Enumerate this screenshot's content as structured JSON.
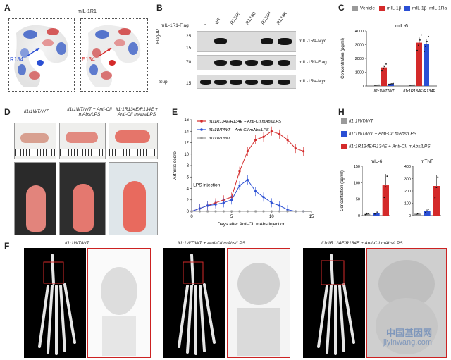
{
  "panel_labels": {
    "A": "A",
    "B": "B",
    "C": "C",
    "D": "D",
    "E": "E",
    "F": "F",
    "H": "H"
  },
  "panelA": {
    "title": "mIL-1R1",
    "left_residue": "R134",
    "right_residue": "E134"
  },
  "panelB": {
    "row_label": "mIL-1R1-Flag",
    "lanes": [
      "-",
      "WT",
      "R134E",
      "R134D",
      "R134H",
      "R134K"
    ],
    "side_labels": [
      "Flag-IP",
      "Sup."
    ],
    "mw_markers": [
      "25",
      "15",
      "70",
      "15"
    ],
    "blot_labels": [
      "mIL-1Ra-Myc",
      "mIL-1R1-Flag",
      "mIL-1Ra-Myc"
    ]
  },
  "panelC": {
    "legend": [
      {
        "label": "Vehicle",
        "color": "#9a9a9a"
      },
      {
        "label": "mIL-1β",
        "color": "#d42a2a"
      },
      {
        "label": "mIL-1β+mIL-1Ra",
        "color": "#2a4fd4"
      }
    ],
    "plot_title": "mIL-6",
    "ylabel": "Concentration (pg/ml)",
    "group_labels": [
      "Il1r1WT/WT",
      "Il1r1R134E/R134E"
    ]
  },
  "panelD": {
    "labels": [
      "Il1r1WT/WT",
      "Il1r1WT/WT + Anti-CII mAbs/LPS",
      "Il1r1R134E/R134E + Anti-CII mAbs/LPS"
    ]
  },
  "panelE": {
    "annotation": "LPS injection",
    "legend": [
      "Il1r1R134E/R134E + Anti-CII mAbs/LPS",
      "Il1r1WT/WT + Anti-CII mAbs/LPS",
      "Il1r1WT/WT"
    ]
  },
  "panelF": {
    "labels": [
      "Il1r1WT/WT",
      "Il1r1WT/WT + Anti-CII mAbs/LPS",
      "Il1r1R134E/R134E + Anti-CII mAbs/LPS"
    ]
  },
  "panelH": {
    "legend": [
      {
        "label": "Il1r1WT/WT",
        "color": "#9a9a9a"
      },
      {
        "label": "Il1r1WT/WT + Anti-CII mAbs/LPS",
        "color": "#2a4fd4"
      },
      {
        "label": "Il1r1R134E/R134E + Anti-CII mAbs/LPS",
        "color": "#d42a2a"
      }
    ],
    "plot_titles": [
      "mIL-6",
      "mTNF"
    ],
    "ylabel": "Concentration (pg/ml)"
  },
  "watermark": {
    "cn": "中国基因网",
    "url": "jiyinwang.com"
  },
  "chart_data": [
    {
      "type": "bar",
      "title": "mIL-6",
      "ylabel": "Concentration (pg/ml)",
      "categories": [
        "Il1r1WT/WT",
        "Il1r1R134E/R134E"
      ],
      "ylim": [
        0,
        4000
      ],
      "yticks": [
        0,
        1000,
        2000,
        3000,
        4000
      ],
      "series": [
        {
          "name": "Vehicle",
          "color": "#9a9a9a",
          "values": [
            60,
            60
          ]
        },
        {
          "name": "mIL-1β",
          "color": "#d42a2a",
          "values": [
            1350,
            3150
          ]
        },
        {
          "name": "mIL-1β+mIL-1Ra",
          "color": "#2a4fd4",
          "values": [
            150,
            3050
          ]
        }
      ]
    },
    {
      "type": "line",
      "title": "",
      "xlabel": "Days after Anti-CII mAbs injection",
      "ylabel": "Arthritis score",
      "xlim": [
        0,
        15
      ],
      "ylim": [
        0,
        16
      ],
      "xticks": [
        0,
        5,
        10,
        15
      ],
      "yticks": [
        0,
        2,
        4,
        6,
        8,
        10,
        12,
        14,
        16
      ],
      "x": [
        0,
        1,
        2,
        3,
        4,
        5,
        6,
        7,
        8,
        9,
        10,
        11,
        12,
        13,
        14
      ],
      "series": [
        {
          "name": "Il1r1R134E/R134E + Anti-CII mAbs/LPS",
          "color": "#d42a2a",
          "values": [
            0,
            0.5,
            1,
            1.5,
            2,
            2.5,
            7,
            10.5,
            12.5,
            13,
            14,
            13.5,
            12.5,
            11,
            10.5
          ]
        },
        {
          "name": "Il1r1WT/WT + Anti-CII mAbs/LPS",
          "color": "#2a4fd4",
          "values": [
            0,
            0.5,
            1,
            1.2,
            1.5,
            2,
            4.5,
            5.5,
            3.5,
            2.5,
            1.5,
            1,
            0.3,
            0,
            0
          ]
        },
        {
          "name": "Il1r1WT/WT",
          "color": "#9a9a9a",
          "values": [
            0,
            0,
            0,
            0,
            0,
            0,
            0,
            0,
            0,
            0,
            0,
            0,
            0,
            0,
            0
          ]
        }
      ]
    },
    {
      "type": "bar",
      "title": "mIL-6",
      "ylabel": "Concentration (pg/ml)",
      "categories": [
        "Il1r1WT/WT",
        "Il1r1WT/WT + Anti-CII mAbs/LPS",
        "Il1r1R134E/R134E + Anti-CII mAbs/LPS"
      ],
      "ylim": [
        0,
        150
      ],
      "yticks": [
        0,
        50,
        100,
        150
      ],
      "values": [
        5,
        8,
        92
      ],
      "colors": [
        "#9a9a9a",
        "#2a4fd4",
        "#d42a2a"
      ]
    },
    {
      "type": "bar",
      "title": "mTNF",
      "ylabel": "",
      "categories": [
        "Il1r1WT/WT",
        "Il1r1WT/WT + Anti-CII mAbs/LPS",
        "Il1r1R134E/R134E + Anti-CII mAbs/LPS"
      ],
      "ylim": [
        0,
        400
      ],
      "yticks": [
        0,
        100,
        200,
        300,
        400
      ],
      "values": [
        15,
        40,
        240
      ],
      "colors": [
        "#9a9a9a",
        "#2a4fd4",
        "#d42a2a"
      ]
    }
  ]
}
